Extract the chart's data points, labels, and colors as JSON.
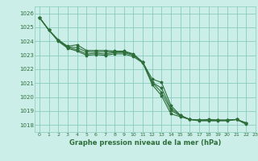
{
  "title": "Graphe pression niveau de la mer (hPa)",
  "background_color": "#cceee8",
  "grid_color": "#88ccbb",
  "line_color": "#2d6e3a",
  "xlim": [
    -0.5,
    23
  ],
  "ylim": [
    1017.5,
    1026.5
  ],
  "yticks": [
    1018,
    1019,
    1020,
    1021,
    1022,
    1023,
    1024,
    1025,
    1026
  ],
  "xticks": [
    0,
    1,
    2,
    3,
    4,
    5,
    6,
    7,
    8,
    9,
    10,
    11,
    12,
    13,
    14,
    15,
    16,
    17,
    18,
    19,
    20,
    21,
    22,
    23
  ],
  "series": [
    [
      1025.7,
      1024.8,
      1024.1,
      1023.65,
      1023.75,
      1023.35,
      1023.35,
      1023.35,
      1023.3,
      1023.3,
      1023.1,
      1022.5,
      1021.3,
      1021.05,
      1019.4,
      1018.7,
      1018.4,
      1018.35,
      1018.4,
      1018.35,
      1018.35,
      1018.4,
      1018.15
    ],
    [
      1025.7,
      1024.8,
      1024.1,
      1023.6,
      1023.55,
      1023.25,
      1023.25,
      1023.25,
      1023.25,
      1023.25,
      1023.05,
      1022.5,
      1021.05,
      1020.65,
      1019.2,
      1018.7,
      1018.4,
      1018.35,
      1018.38,
      1018.35,
      1018.35,
      1018.4,
      1018.15
    ],
    [
      1025.7,
      1024.8,
      1024.05,
      1023.55,
      1023.4,
      1023.1,
      1023.15,
      1023.1,
      1023.2,
      1023.2,
      1023.0,
      1022.5,
      1021.05,
      1020.35,
      1019.05,
      1018.65,
      1018.4,
      1018.35,
      1018.35,
      1018.35,
      1018.35,
      1018.4,
      1018.15
    ],
    [
      1025.7,
      1024.8,
      1024.0,
      1023.5,
      1023.3,
      1023.0,
      1023.05,
      1023.0,
      1023.1,
      1023.1,
      1022.9,
      1022.45,
      1020.9,
      1020.1,
      1018.8,
      1018.6,
      1018.4,
      1018.3,
      1018.3,
      1018.3,
      1018.3,
      1018.4,
      1018.05
    ]
  ]
}
